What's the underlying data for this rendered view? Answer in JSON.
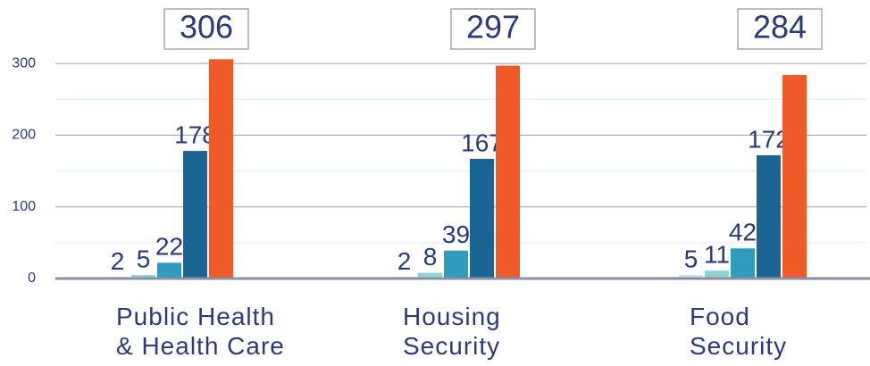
{
  "chart_data": {
    "type": "bar",
    "categories": [
      "Public Health\n& Health Care",
      "Housing\nSecurity",
      "Food\nSecurity"
    ],
    "series": [
      {
        "color": "#c4e9e8",
        "values": [
          2,
          2,
          5
        ]
      },
      {
        "color": "#8fd4d2",
        "values": [
          5,
          8,
          11
        ]
      },
      {
        "color": "#2f9cbd",
        "values": [
          22,
          39,
          42
        ]
      },
      {
        "color": "#1b6595",
        "values": [
          178,
          167,
          172
        ]
      },
      {
        "color": "#f05a28",
        "values": [
          306,
          297,
          284
        ]
      }
    ],
    "ylim": [
      0,
      350
    ],
    "yticks": [
      0,
      100,
      200,
      300
    ],
    "minor_grid": [
      50,
      150,
      250
    ],
    "grid": true
  }
}
